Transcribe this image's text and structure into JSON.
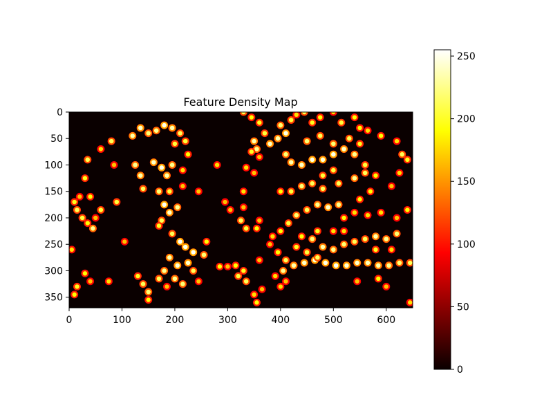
{
  "chart_data": {
    "type": "heatmap",
    "title": "Feature Density Map",
    "xlabel": "",
    "ylabel": "",
    "colormap": "hot",
    "image_width": 650,
    "image_height": 370,
    "x_ticks": [
      0,
      100,
      200,
      300,
      400,
      500,
      600
    ],
    "y_ticks": [
      0,
      50,
      100,
      150,
      200,
      250,
      300,
      350
    ],
    "colorbar": {
      "range": [
        0,
        255
      ],
      "ticks": [
        0,
        50,
        100,
        150,
        200,
        250
      ]
    },
    "background_value": 0,
    "features": [
      [
        10,
        170,
        180
      ],
      [
        15,
        185,
        200
      ],
      [
        25,
        200,
        190
      ],
      [
        35,
        210,
        170
      ],
      [
        45,
        220,
        220
      ],
      [
        50,
        200,
        150
      ],
      [
        60,
        185,
        190
      ],
      [
        40,
        160,
        170
      ],
      [
        20,
        160,
        150
      ],
      [
        30,
        125,
        180
      ],
      [
        35,
        90,
        200
      ],
      [
        60,
        70,
        160
      ],
      [
        80,
        55,
        200
      ],
      [
        85,
        100,
        150
      ],
      [
        90,
        170,
        190
      ],
      [
        75,
        320,
        160
      ],
      [
        15,
        330,
        180
      ],
      [
        10,
        345,
        170
      ],
      [
        5,
        260,
        160
      ],
      [
        40,
        320,
        150
      ],
      [
        30,
        305,
        170
      ],
      [
        105,
        245,
        150
      ],
      [
        120,
        45,
        230
      ],
      [
        135,
        30,
        240
      ],
      [
        150,
        40,
        210
      ],
      [
        165,
        35,
        220
      ],
      [
        180,
        25,
        250
      ],
      [
        195,
        30,
        230
      ],
      [
        210,
        40,
        200
      ],
      [
        220,
        55,
        190
      ],
      [
        225,
        80,
        170
      ],
      [
        215,
        110,
        160
      ],
      [
        125,
        100,
        220
      ],
      [
        135,
        120,
        230
      ],
      [
        140,
        145,
        200
      ],
      [
        160,
        95,
        240
      ],
      [
        175,
        105,
        250
      ],
      [
        185,
        120,
        230
      ],
      [
        170,
        150,
        210
      ],
      [
        180,
        175,
        255
      ],
      [
        190,
        190,
        240
      ],
      [
        205,
        180,
        220
      ],
      [
        175,
        205,
        200
      ],
      [
        190,
        150,
        190
      ],
      [
        215,
        140,
        150
      ],
      [
        245,
        150,
        150
      ],
      [
        195,
        100,
        220
      ],
      [
        200,
        60,
        190
      ],
      [
        170,
        215,
        180
      ],
      [
        195,
        230,
        200
      ],
      [
        210,
        245,
        255
      ],
      [
        220,
        255,
        250
      ],
      [
        235,
        265,
        255
      ],
      [
        225,
        285,
        240
      ],
      [
        205,
        290,
        245
      ],
      [
        190,
        275,
        230
      ],
      [
        180,
        300,
        220
      ],
      [
        170,
        315,
        200
      ],
      [
        200,
        315,
        220
      ],
      [
        215,
        325,
        210
      ],
      [
        235,
        300,
        200
      ],
      [
        255,
        270,
        210
      ],
      [
        260,
        245,
        170
      ],
      [
        245,
        320,
        150
      ],
      [
        140,
        325,
        200
      ],
      [
        150,
        340,
        210
      ],
      [
        130,
        310,
        180
      ],
      [
        150,
        355,
        170
      ],
      [
        185,
        330,
        150
      ],
      [
        280,
        100,
        160
      ],
      [
        295,
        170,
        150
      ],
      [
        305,
        185,
        150
      ],
      [
        285,
        292,
        170
      ],
      [
        300,
        292,
        150
      ],
      [
        330,
        0,
        200
      ],
      [
        345,
        10,
        170
      ],
      [
        360,
        20,
        180
      ],
      [
        370,
        40,
        190
      ],
      [
        350,
        55,
        230
      ],
      [
        355,
        70,
        220
      ],
      [
        380,
        60,
        240
      ],
      [
        395,
        50,
        230
      ],
      [
        410,
        40,
        250
      ],
      [
        400,
        25,
        210
      ],
      [
        420,
        15,
        190
      ],
      [
        430,
        5,
        160
      ],
      [
        445,
        0,
        200
      ],
      [
        460,
        20,
        180
      ],
      [
        475,
        10,
        170
      ],
      [
        500,
        0,
        160
      ],
      [
        515,
        20,
        190
      ],
      [
        540,
        10,
        170
      ],
      [
        565,
        35,
        160
      ],
      [
        590,
        45,
        170
      ],
      [
        620,
        55,
        160
      ],
      [
        640,
        90,
        180
      ],
      [
        630,
        80,
        200
      ],
      [
        625,
        115,
        160
      ],
      [
        610,
        140,
        150
      ],
      [
        580,
        120,
        170
      ],
      [
        560,
        100,
        190
      ],
      [
        540,
        80,
        220
      ],
      [
        520,
        70,
        240
      ],
      [
        500,
        80,
        250
      ],
      [
        480,
        90,
        245
      ],
      [
        460,
        90,
        250
      ],
      [
        440,
        100,
        240
      ],
      [
        420,
        95,
        230
      ],
      [
        410,
        80,
        210
      ],
      [
        450,
        55,
        210
      ],
      [
        475,
        45,
        200
      ],
      [
        500,
        60,
        210
      ],
      [
        530,
        50,
        200
      ],
      [
        550,
        60,
        180
      ],
      [
        550,
        30,
        170
      ],
      [
        500,
        110,
        190
      ],
      [
        480,
        120,
        190
      ],
      [
        460,
        135,
        200
      ],
      [
        440,
        140,
        210
      ],
      [
        420,
        150,
        190
      ],
      [
        400,
        150,
        170
      ],
      [
        480,
        145,
        200
      ],
      [
        510,
        135,
        200
      ],
      [
        540,
        125,
        220
      ],
      [
        560,
        115,
        200
      ],
      [
        570,
        150,
        170
      ],
      [
        550,
        165,
        170
      ],
      [
        510,
        175,
        220
      ],
      [
        490,
        180,
        240
      ],
      [
        470,
        175,
        220
      ],
      [
        450,
        185,
        200
      ],
      [
        430,
        195,
        210
      ],
      [
        415,
        210,
        190
      ],
      [
        400,
        225,
        170
      ],
      [
        385,
        235,
        160
      ],
      [
        380,
        250,
        150
      ],
      [
        395,
        265,
        170
      ],
      [
        410,
        280,
        200
      ],
      [
        405,
        300,
        220
      ],
      [
        425,
        290,
        230
      ],
      [
        445,
        285,
        240
      ],
      [
        465,
        280,
        245
      ],
      [
        485,
        285,
        250
      ],
      [
        505,
        290,
        255
      ],
      [
        525,
        290,
        245
      ],
      [
        545,
        285,
        240
      ],
      [
        565,
        285,
        235
      ],
      [
        585,
        290,
        230
      ],
      [
        605,
        290,
        220
      ],
      [
        625,
        285,
        210
      ],
      [
        645,
        285,
        200
      ],
      [
        560,
        240,
        200
      ],
      [
        580,
        235,
        230
      ],
      [
        600,
        240,
        220
      ],
      [
        620,
        230,
        210
      ],
      [
        580,
        260,
        180
      ],
      [
        610,
        260,
        160
      ],
      [
        460,
        240,
        210
      ],
      [
        480,
        255,
        230
      ],
      [
        500,
        260,
        220
      ],
      [
        520,
        250,
        210
      ],
      [
        540,
        245,
        200
      ],
      [
        450,
        265,
        190
      ],
      [
        470,
        275,
        200
      ],
      [
        430,
        255,
        180
      ],
      [
        440,
        235,
        170
      ],
      [
        470,
        225,
        180
      ],
      [
        500,
        225,
        160
      ],
      [
        520,
        225,
        160
      ],
      [
        520,
        200,
        170
      ],
      [
        540,
        190,
        160
      ],
      [
        565,
        195,
        160
      ],
      [
        590,
        190,
        160
      ],
      [
        640,
        185,
        170
      ],
      [
        620,
        200,
        150
      ],
      [
        585,
        315,
        170
      ],
      [
        545,
        320,
        150
      ],
      [
        600,
        330,
        150
      ],
      [
        645,
        360,
        160
      ],
      [
        410,
        320,
        150
      ],
      [
        400,
        330,
        160
      ],
      [
        390,
        310,
        160
      ],
      [
        355,
        360,
        170
      ],
      [
        350,
        345,
        160
      ],
      [
        365,
        335,
        150
      ],
      [
        335,
        320,
        200
      ],
      [
        320,
        310,
        190
      ],
      [
        330,
        300,
        180
      ],
      [
        315,
        290,
        170
      ],
      [
        325,
        205,
        200
      ],
      [
        335,
        220,
        190
      ],
      [
        355,
        220,
        170
      ],
      [
        360,
        205,
        150
      ],
      [
        330,
        150,
        160
      ],
      [
        335,
        105,
        160
      ],
      [
        345,
        75,
        180
      ],
      [
        360,
        85,
        150
      ],
      [
        350,
        115,
        150
      ],
      [
        360,
        280,
        150
      ],
      [
        330,
        180,
        150
      ]
    ]
  }
}
